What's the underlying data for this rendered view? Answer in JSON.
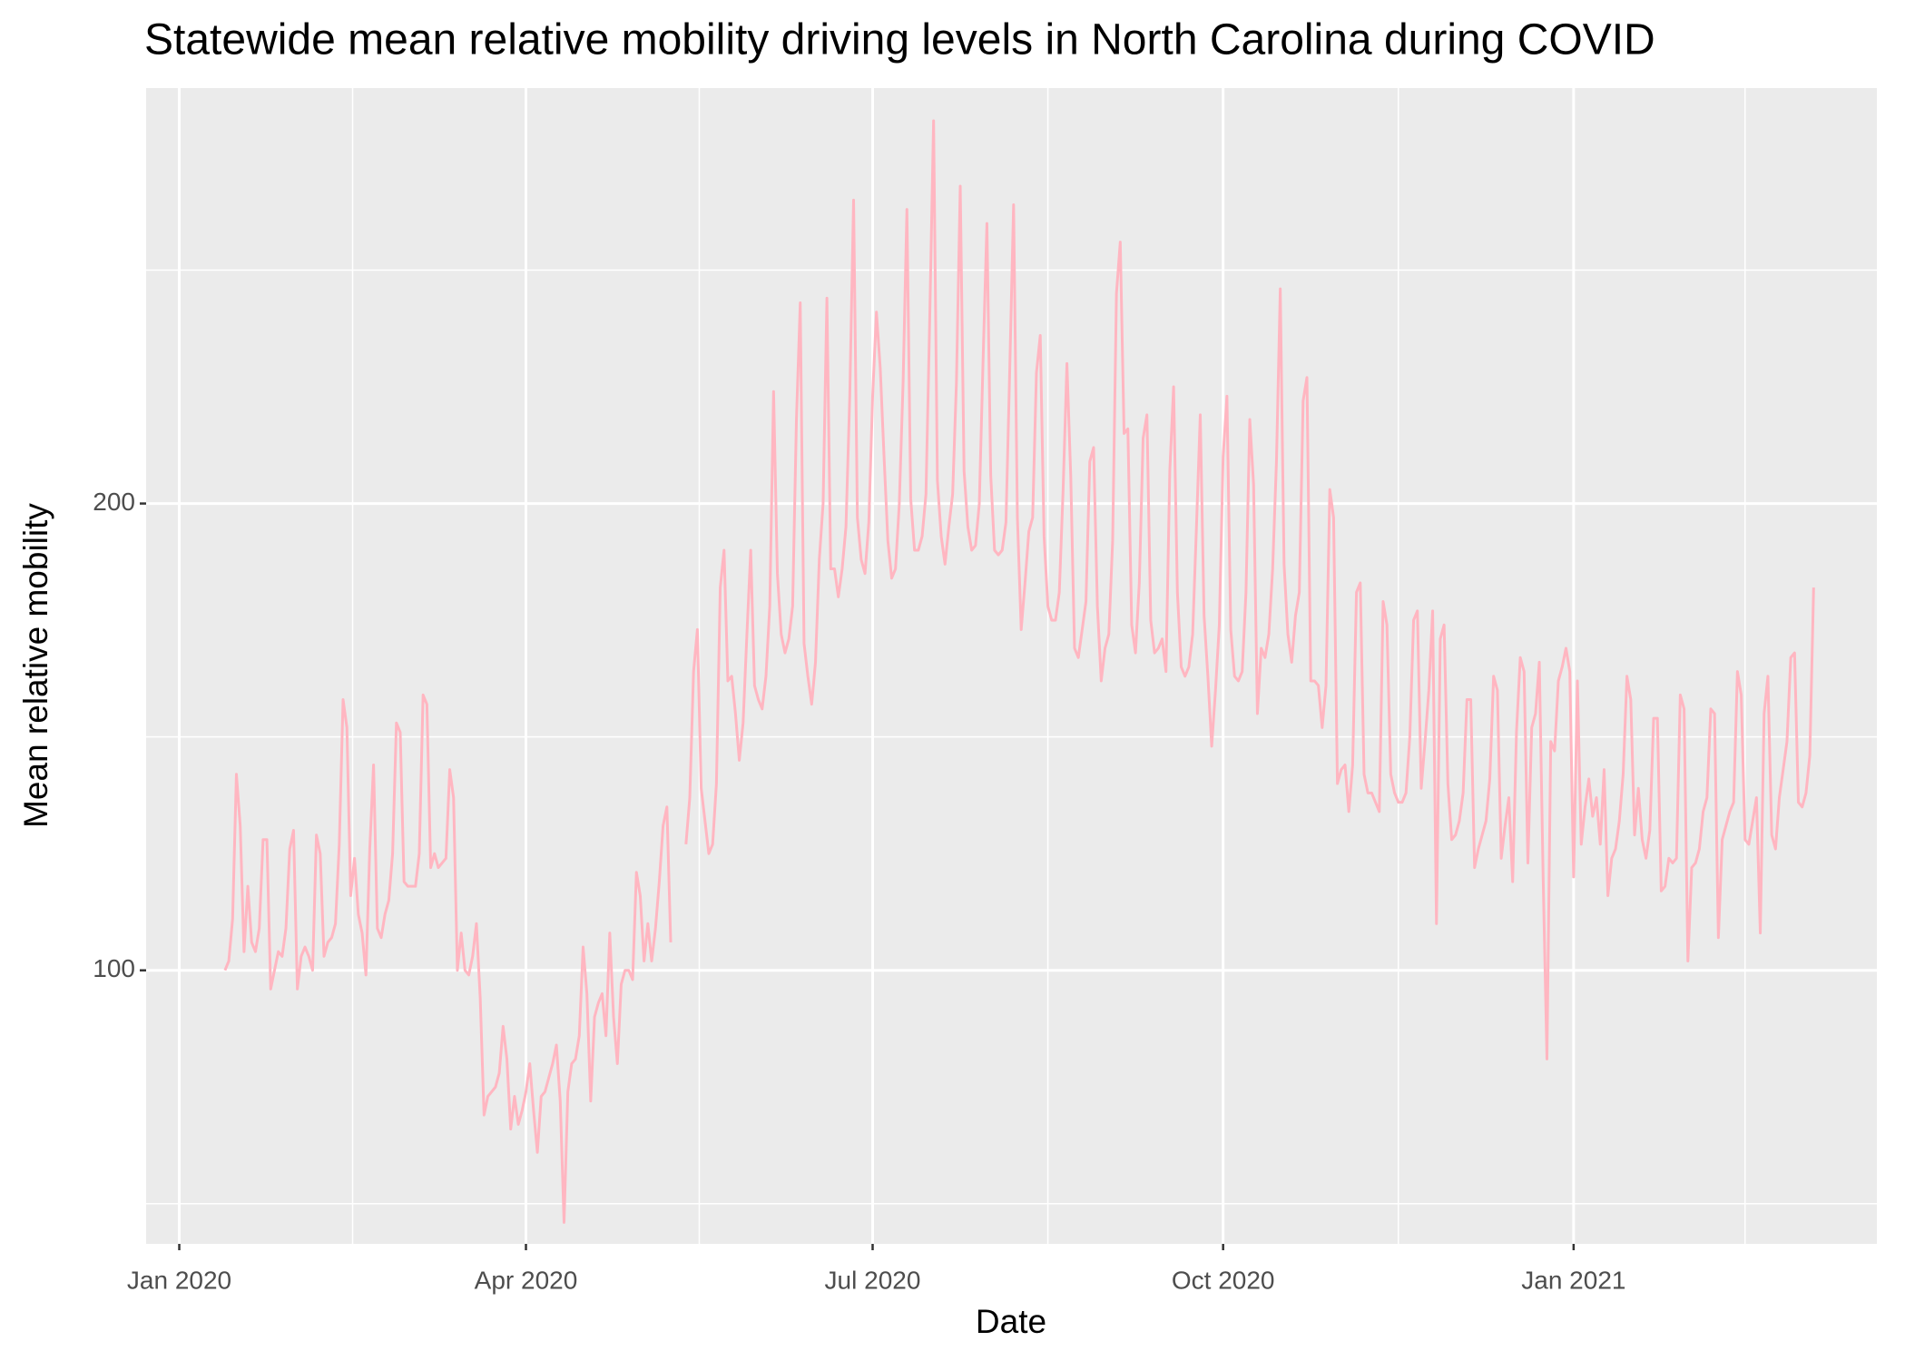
{
  "chart_data": {
    "type": "line",
    "title": "Statewide mean relative mobility driving levels in North Carolina during COVID",
    "x_label": "Date",
    "y_label": "Mean relative mobility",
    "color": "#ffb6c1",
    "grid": true,
    "xlim": [
      -8.7,
      445.6
    ],
    "xticks": [
      {
        "value": 0,
        "label": "Jan 2020"
      },
      {
        "value": 91,
        "label": "Apr 2020"
      },
      {
        "value": 182,
        "label": "Jul 2020"
      },
      {
        "value": 274,
        "label": "Oct 2020"
      },
      {
        "value": 366,
        "label": "Jan 2021"
      }
    ],
    "x_minor_grid": [
      45.5,
      136.5,
      228,
      320,
      411
    ],
    "ylim": [
      41.4,
      289
    ],
    "yticks": [
      100,
      200
    ],
    "y_minor_grid": [
      50,
      150,
      250
    ],
    "x": [
      12,
      13,
      14,
      15,
      16,
      17,
      18,
      19,
      20,
      21,
      22,
      23,
      24,
      25,
      26,
      27,
      28,
      29,
      30,
      31,
      32,
      33,
      34,
      35,
      36,
      37,
      38,
      39,
      40,
      41,
      42,
      43,
      44,
      45,
      46,
      47,
      48,
      49,
      50,
      51,
      52,
      53,
      54,
      55,
      56,
      57,
      58,
      59,
      60,
      61,
      62,
      63,
      64,
      65,
      66,
      67,
      68,
      69,
      70,
      71,
      72,
      73,
      74,
      75,
      76,
      77,
      78,
      79,
      80,
      81,
      82,
      83,
      84,
      85,
      86,
      87,
      88,
      89,
      90,
      91,
      92,
      93,
      94,
      95,
      96,
      97,
      98,
      99,
      100,
      101,
      102,
      103,
      104,
      105,
      106,
      107,
      108,
      109,
      110,
      111,
      112,
      113,
      114,
      115,
      116,
      117,
      118,
      119,
      120,
      121,
      122,
      123,
      124,
      125,
      126,
      127,
      128,
      129,
      131,
      133,
      134,
      135,
      136,
      137,
      138,
      139,
      140,
      141,
      142,
      143,
      144,
      145,
      146,
      147,
      148,
      149,
      150,
      151,
      152,
      153,
      154,
      155,
      156,
      157,
      158,
      159,
      160,
      161,
      162,
      163,
      164,
      165,
      166,
      167,
      168,
      169,
      170,
      171,
      172,
      173,
      174,
      175,
      176,
      177,
      178,
      179,
      180,
      181,
      182,
      183,
      184,
      185,
      186,
      187,
      188,
      189,
      190,
      191,
      192,
      193,
      194,
      195,
      196,
      197,
      198,
      199,
      200,
      201,
      202,
      203,
      204,
      205,
      206,
      207,
      208,
      209,
      210,
      211,
      212,
      213,
      214,
      215,
      216,
      217,
      218,
      219,
      220,
      221,
      222,
      223,
      224,
      225,
      226,
      227,
      228,
      229,
      230,
      231,
      232,
      233,
      234,
      235,
      236,
      237,
      238,
      239,
      240,
      241,
      242,
      243,
      244,
      245,
      246,
      247,
      248,
      249,
      250,
      251,
      252,
      253,
      254,
      255,
      256,
      257,
      258,
      259,
      260,
      261,
      262,
      263,
      264,
      265,
      266,
      267,
      268,
      269,
      270,
      271,
      272,
      273,
      274,
      275,
      276,
      277,
      278,
      279,
      280,
      281,
      282,
      283,
      284,
      285,
      286,
      287,
      288,
      289,
      290,
      291,
      292,
      293,
      294,
      295,
      296,
      297,
      298,
      299,
      300,
      301,
      302,
      303,
      304,
      305,
      306,
      307,
      308,
      309,
      310,
      311,
      312,
      313,
      314,
      315,
      316,
      317,
      318,
      319,
      320,
      321,
      322,
      323,
      324,
      325,
      326,
      327,
      328,
      329,
      330,
      331,
      332,
      333,
      334,
      335,
      336,
      337,
      338,
      339,
      340,
      341,
      342,
      343,
      344,
      345,
      346,
      347,
      348,
      349,
      350,
      351,
      352,
      353,
      354,
      355,
      356,
      357,
      358,
      359,
      360,
      361,
      362,
      363,
      364,
      365,
      366,
      367,
      368,
      369,
      370,
      371,
      372,
      373,
      374,
      375,
      376,
      377,
      378,
      379,
      380,
      381,
      382,
      383,
      384,
      385,
      386,
      387,
      388,
      389,
      390,
      391,
      392,
      393,
      394,
      395,
      396,
      397,
      398,
      399,
      400,
      401,
      402,
      403,
      404,
      405,
      406,
      407,
      408,
      409,
      410,
      411,
      412,
      413,
      414,
      415,
      416,
      417,
      418,
      419,
      420,
      421,
      422,
      423,
      424,
      425,
      426,
      427,
      428,
      429
    ],
    "values": [
      100,
      102,
      111,
      142,
      131,
      104,
      118,
      106,
      104,
      109,
      128,
      128,
      96,
      100,
      104,
      103,
      109,
      126,
      130,
      96,
      103,
      105,
      103,
      100,
      129,
      125,
      103,
      106,
      107,
      110,
      127,
      158,
      152,
      116,
      124,
      112,
      108,
      99,
      126,
      144,
      109,
      107,
      112,
      115,
      125,
      153,
      151,
      119,
      118,
      118,
      118,
      125,
      159,
      157,
      122,
      125,
      122,
      123,
      124,
      143,
      137,
      100,
      108,
      100,
      99,
      103,
      110,
      94,
      69,
      73,
      74,
      75,
      78,
      88,
      81,
      66,
      73,
      67,
      70,
      74,
      80,
      70,
      61,
      73,
      74,
      77,
      80,
      84,
      72,
      46,
      74,
      80,
      81,
      86,
      105,
      95,
      72,
      90,
      93,
      95,
      86,
      108,
      90,
      80,
      97,
      100,
      100,
      98,
      121,
      116,
      102,
      110,
      102,
      109,
      119,
      131,
      135,
      106,
      null,
      127,
      137,
      164,
      173,
      139,
      132,
      125,
      127,
      140,
      182,
      190,
      162,
      163,
      155,
      145,
      153,
      172,
      190,
      161,
      158,
      156,
      163,
      178,
      224,
      185,
      172,
      168,
      171,
      178,
      218,
      243,
      170,
      163,
      157,
      166,
      188,
      200,
      244,
      186,
      186,
      180,
      186,
      195,
      223,
      265,
      197,
      188,
      185,
      196,
      223,
      241,
      229,
      210,
      192,
      184,
      186,
      200,
      226,
      263,
      201,
      190,
      190,
      193,
      202,
      240,
      282,
      205,
      193,
      187,
      195,
      202,
      226,
      268,
      207,
      195,
      190,
      191,
      200,
      231,
      260,
      206,
      190,
      189,
      190,
      196,
      229,
      264,
      197,
      173,
      183,
      194,
      197,
      228,
      236,
      193,
      178,
      175,
      175,
      181,
      203,
      230,
      206,
      169,
      167,
      173,
      179,
      209,
      212,
      178,
      162,
      169,
      172,
      192,
      245,
      256,
      215,
      216,
      174,
      168,
      183,
      214,
      219,
      175,
      168,
      169,
      171,
      164,
      207,
      225,
      181,
      165,
      163,
      165,
      172,
      195,
      219,
      176,
      163,
      148,
      160,
      174,
      210,
      223,
      173,
      163,
      162,
      164,
      181,
      218,
      204,
      155,
      169,
      167,
      172,
      186,
      209,
      246,
      187,
      172,
      166,
      176,
      181,
      222,
      227,
      162,
      162,
      161,
      152,
      161,
      203,
      197,
      140,
      143,
      144,
      134,
      144,
      181,
      183,
      142,
      138,
      138,
      136,
      134,
      179,
      174,
      142,
      138,
      136,
      136,
      138,
      150,
      175,
      177,
      139,
      149,
      160,
      177,
      110,
      171,
      174,
      140,
      128,
      129,
      132,
      138,
      158,
      158,
      122,
      126,
      129,
      132,
      141,
      163,
      160,
      124,
      131,
      137,
      119,
      151,
      167,
      164,
      123,
      152,
      155,
      166,
      120,
      81,
      149,
      147,
      162,
      165,
      169,
      164,
      120,
      162,
      127,
      135,
      141,
      133,
      137,
      127,
      143,
      116,
      124,
      126,
      132,
      142,
      163,
      158,
      129,
      139,
      128,
      124,
      130,
      154,
      154,
      117,
      118,
      124,
      123,
      124,
      159,
      156,
      102,
      122,
      123,
      126,
      134,
      137,
      156,
      155,
      107,
      128,
      131,
      134,
      136,
      164,
      159,
      128,
      127,
      132,
      137,
      108,
      155,
      163,
      129,
      126,
      137,
      143,
      149,
      167,
      168,
      136,
      135,
      138,
      146,
      182
    ]
  }
}
